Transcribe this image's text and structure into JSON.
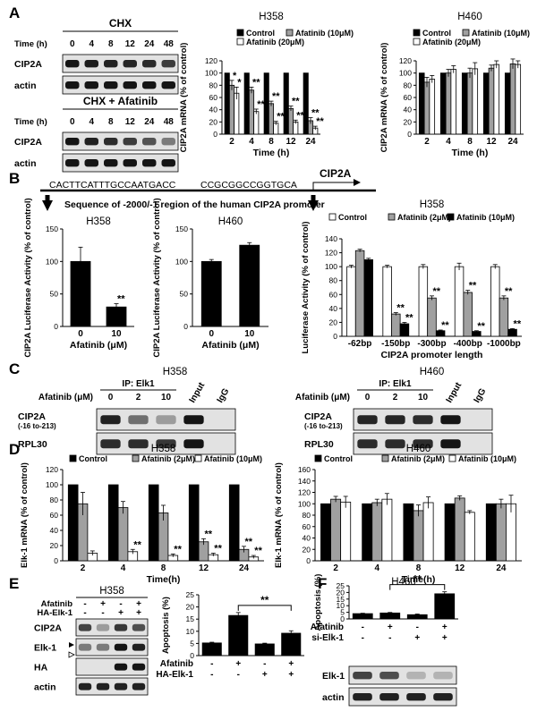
{
  "panels": {
    "A": {
      "label": "A",
      "blot_top": {
        "title": "CHX",
        "time_label": "Time (h)",
        "times": [
          "0",
          "4",
          "8",
          "12",
          "24",
          "48"
        ],
        "rows": [
          {
            "name": "CIP2A",
            "intensity": [
              0.95,
              0.92,
              0.9,
              0.88,
              0.86,
              0.78
            ]
          },
          {
            "name": "actin",
            "intensity": [
              0.95,
              0.95,
              0.95,
              0.95,
              0.95,
              0.95
            ]
          }
        ]
      },
      "blot_bottom": {
        "title": "CHX + Afatinib",
        "time_label": "Time (h)",
        "times": [
          "0",
          "4",
          "8",
          "12",
          "24",
          "48"
        ],
        "rows": [
          {
            "name": "CIP2A",
            "intensity": [
              0.95,
              0.9,
              0.85,
              0.78,
              0.68,
              0.5
            ]
          },
          {
            "name": "actin",
            "intensity": [
              0.95,
              0.95,
              0.95,
              0.95,
              0.95,
              0.95
            ]
          }
        ]
      }
    },
    "B": {
      "label": "B",
      "promoter": {
        "seq_left": "CACTTCATTTGCCAATGACC",
        "seq_right": "CCGCGGCCGGTGCA",
        "gene": "CIP2A",
        "caption": "Sequence of -2000/-1  region of  the human CIP2A promoter"
      }
    },
    "C": {
      "label": "C",
      "blots": [
        {
          "cell": "H358",
          "ip": "IP: Elk1",
          "dose_label": "Afatinib (μM)",
          "doses": [
            "0",
            "2",
            "10"
          ],
          "extra_lanes": [
            "Input",
            "IgG"
          ],
          "rows": [
            {
              "name": "CIP2A",
              "sub": "(-16 to-213)",
              "intensity": [
                0.9,
                0.55,
                0.35,
                0.95,
                0.0
              ]
            },
            {
              "name": "RPL30",
              "sub": "",
              "intensity": [
                0.85,
                0.85,
                0.8,
                0.95,
                0.0
              ]
            }
          ]
        },
        {
          "cell": "H460",
          "ip": "IP: Elk1",
          "dose_label": "Afatinib (μM)",
          "doses": [
            "0",
            "2",
            "10"
          ],
          "extra_lanes": [
            "Input",
            "IgG"
          ],
          "rows": [
            {
              "name": "CIP2A",
              "sub": "(-16 to-213)",
              "intensity": [
                0.88,
                0.88,
                0.85,
                0.95,
                0.0
              ]
            },
            {
              "name": "RPL30",
              "sub": "",
              "intensity": [
                0.85,
                0.85,
                0.85,
                0.95,
                0.0
              ]
            }
          ]
        }
      ]
    },
    "D": {
      "label": "D"
    },
    "E": {
      "label": "E",
      "blot": {
        "cell": "H358",
        "conditions": [
          {
            "name": "Afatinib",
            "signs": [
              "-",
              "+",
              "-",
              "+"
            ]
          },
          {
            "name": "HA-Elk-1",
            "signs": [
              "-",
              "-",
              "+",
              "+"
            ]
          }
        ],
        "rows": [
          {
            "name": "CIP2A",
            "intensity": [
              0.75,
              0.35,
              0.8,
              0.7
            ]
          },
          {
            "name": "Elk-1",
            "intensity": [
              0.5,
              0.5,
              0.95,
              0.9
            ]
          },
          {
            "name": "HA",
            "intensity": [
              0.0,
              0.0,
              0.95,
              0.95
            ]
          },
          {
            "name": "actin",
            "intensity": [
              0.9,
              0.9,
              0.9,
              0.9
            ]
          }
        ]
      }
    },
    "F": {
      "label": "F",
      "blot": {
        "conditions": [
          {
            "name": "Afatinib",
            "signs": [
              "-",
              "+",
              "-",
              "+"
            ]
          },
          {
            "name": "si-Elk-1",
            "signs": [
              "-",
              "-",
              "+",
              "+"
            ]
          }
        ],
        "rows": [
          {
            "name": "Elk-1",
            "intensity": [
              0.75,
              0.7,
              0.25,
              0.25
            ]
          },
          {
            "name": "actin",
            "intensity": [
              0.9,
              0.9,
              0.9,
              0.9
            ]
          }
        ]
      }
    }
  },
  "chart_data": [
    {
      "id": "A-H358",
      "type": "bar",
      "title": "H358",
      "xlabel": "Time (h)",
      "ylabel": "CIP2A mRNA (% of control)",
      "categories": [
        "2",
        "4",
        "8",
        "12",
        "24"
      ],
      "ylim": [
        0,
        120
      ],
      "yticks": [
        0,
        20,
        40,
        60,
        80,
        100,
        120
      ],
      "legend_cols": 2,
      "series": [
        {
          "name": "Control",
          "fill": "#000000",
          "values": [
            100,
            100,
            100,
            100,
            100
          ],
          "err": [
            0,
            0,
            0,
            0,
            0
          ],
          "stars": [
            "",
            "",
            "",
            "",
            ""
          ]
        },
        {
          "name": "Afatinib (10μM)",
          "fill": "#a0a0a0",
          "values": [
            80,
            72,
            50,
            42,
            22
          ],
          "err": [
            8,
            5,
            4,
            4,
            5
          ],
          "stars": [
            "*",
            "**",
            "**",
            "**",
            "**"
          ]
        },
        {
          "name": "Afatinib (20μM)",
          "fill": "#ffffff",
          "values": [
            67,
            37,
            18,
            20,
            10
          ],
          "err": [
            10,
            4,
            3,
            3,
            3
          ],
          "stars": [
            "*",
            "**",
            "**",
            "**",
            "**"
          ]
        }
      ]
    },
    {
      "id": "A-H460",
      "type": "bar",
      "title": "H460",
      "xlabel": "Time (h)",
      "ylabel": "CIP2A  mRNA (% of control)",
      "categories": [
        "2",
        "4",
        "8",
        "12",
        "24"
      ],
      "ylim": [
        0,
        120
      ],
      "yticks": [
        0,
        20,
        40,
        60,
        80,
        100,
        120
      ],
      "legend_cols": 2,
      "series": [
        {
          "name": "Control",
          "fill": "#000000",
          "values": [
            100,
            100,
            100,
            100,
            100
          ],
          "err": [
            0,
            0,
            0,
            0,
            0
          ],
          "stars": [
            "",
            "",
            "",
            "",
            ""
          ]
        },
        {
          "name": "Afatinib (10μM)",
          "fill": "#a0a0a0",
          "values": [
            85,
            100,
            100,
            108,
            115
          ],
          "err": [
            8,
            6,
            8,
            5,
            8
          ],
          "stars": [
            "",
            "",
            "",
            "",
            ""
          ]
        },
        {
          "name": "Afatinib (20μM)",
          "fill": "#ffffff",
          "values": [
            90,
            106,
            107,
            114,
            114
          ],
          "err": [
            6,
            6,
            10,
            6,
            6
          ],
          "stars": [
            "",
            "",
            "",
            "",
            ""
          ]
        }
      ]
    },
    {
      "id": "B-H358",
      "type": "bar",
      "title": "H358",
      "xlabel": "Afatinib  (μM)",
      "ylabel": "CIP2A Luciferase Activity (% of control)",
      "categories": [
        "0",
        "10"
      ],
      "ylim": [
        0,
        150
      ],
      "yticks": [
        0,
        50,
        100,
        150
      ],
      "series": [
        {
          "name": "",
          "fill": "#000000",
          "values": [
            100,
            30
          ],
          "err": [
            22,
            5
          ],
          "stars": [
            "",
            "**"
          ]
        }
      ]
    },
    {
      "id": "B-H460",
      "type": "bar",
      "title": "H460",
      "xlabel": "Afatinib  (μM)",
      "ylabel": "CIP2A Luciferase Activity (% of control)",
      "categories": [
        "0",
        "10"
      ],
      "ylim": [
        0,
        150
      ],
      "yticks": [
        0,
        50,
        100,
        150
      ],
      "series": [
        {
          "name": "",
          "fill": "#000000",
          "values": [
            100,
            125
          ],
          "err": [
            3,
            4
          ],
          "stars": [
            "",
            ""
          ]
        }
      ]
    },
    {
      "id": "B-promoter",
      "type": "bar",
      "title": "H358",
      "xlabel": "CIP2A promoter length",
      "ylabel": "Luciferase  Activity (% of control)",
      "categories": [
        "-62bp",
        "-150bp",
        "-300bp",
        "-400bp",
        "-1000bp"
      ],
      "ylim": [
        0,
        140
      ],
      "yticks": [
        0,
        20,
        40,
        60,
        80,
        100,
        120,
        140
      ],
      "legend_cols": 3,
      "series": [
        {
          "name": "Control",
          "fill": "#ffffff",
          "values": [
            100,
            100,
            100,
            100,
            100
          ],
          "err": [
            2,
            2,
            3,
            5,
            3
          ],
          "stars": [
            "",
            "",
            "",
            "",
            ""
          ]
        },
        {
          "name": "Afatinib (2μM)",
          "fill": "#a0a0a0",
          "values": [
            123,
            32,
            55,
            63,
            55
          ],
          "err": [
            2,
            2,
            3,
            3,
            3
          ],
          "stars": [
            "",
            "**",
            "**",
            "**",
            "**"
          ]
        },
        {
          "name": "Afatinib (10μM)",
          "fill": "#000000",
          "values": [
            110,
            18,
            8,
            7,
            10
          ],
          "err": [
            2,
            2,
            1,
            1,
            1
          ],
          "stars": [
            "",
            "**",
            "**",
            "**",
            "**"
          ]
        }
      ]
    },
    {
      "id": "D-H358",
      "type": "bar",
      "title": "H358",
      "xlabel": "Time(h)",
      "ylabel": "Elk-1 mRNA (% of control)",
      "categories": [
        "2",
        "4",
        "8",
        "12",
        "24"
      ],
      "ylim": [
        0,
        120
      ],
      "yticks": [
        0,
        20,
        40,
        60,
        80,
        100,
        120
      ],
      "legend_cols": 3,
      "series": [
        {
          "name": "Control",
          "fill": "#000000",
          "values": [
            100,
            100,
            100,
            100,
            100
          ],
          "err": [
            0,
            0,
            0,
            0,
            0
          ],
          "stars": [
            "",
            "",
            "",
            "",
            ""
          ]
        },
        {
          "name": "Afatinib (2μM)",
          "fill": "#a0a0a0",
          "values": [
            75,
            70,
            63,
            25,
            15
          ],
          "err": [
            15,
            8,
            10,
            4,
            4
          ],
          "stars": [
            "",
            "",
            "",
            "**",
            "**"
          ]
        },
        {
          "name": "Afatinib (10μM)",
          "fill": "#ffffff",
          "values": [
            10,
            12,
            7,
            8,
            5
          ],
          "err": [
            3,
            3,
            2,
            2,
            2
          ],
          "stars": [
            "",
            "**",
            "**",
            "**",
            "**"
          ]
        }
      ]
    },
    {
      "id": "D-H460",
      "type": "bar",
      "title": "H460",
      "xlabel": "Time(h)",
      "ylabel": "Elk-1 mRNA (% of control)",
      "categories": [
        "2",
        "4",
        "8",
        "12",
        "24"
      ],
      "ylim": [
        0,
        160
      ],
      "yticks": [
        0,
        20,
        40,
        60,
        80,
        100,
        120,
        140,
        160
      ],
      "legend_cols": 3,
      "series": [
        {
          "name": "Control",
          "fill": "#000000",
          "values": [
            100,
            100,
            100,
            100,
            100
          ],
          "err": [
            0,
            0,
            0,
            0,
            0
          ],
          "stars": [
            "",
            "",
            "",
            "",
            ""
          ]
        },
        {
          "name": "Afatinib (2μM)",
          "fill": "#a0a0a0",
          "values": [
            108,
            102,
            88,
            110,
            100
          ],
          "err": [
            5,
            6,
            10,
            4,
            8
          ],
          "stars": [
            "",
            "",
            "",
            "",
            ""
          ]
        },
        {
          "name": "Afatinib (10μM)",
          "fill": "#ffffff",
          "values": [
            103,
            108,
            102,
            85,
            100
          ],
          "err": [
            10,
            10,
            10,
            3,
            15
          ],
          "stars": [
            "",
            "",
            "",
            "",
            ""
          ]
        }
      ]
    },
    {
      "id": "E-apoptosis",
      "type": "bar",
      "title": "",
      "xlabel": "",
      "ylabel": "Apoptosis (%)",
      "categories": [
        "1",
        "2",
        "3",
        "4"
      ],
      "ylim": [
        0,
        25
      ],
      "yticks": [
        0,
        5,
        10,
        15,
        20,
        25
      ],
      "conditions": [
        {
          "name": "Afatinib",
          "signs": [
            "-",
            "+",
            "-",
            "+"
          ]
        },
        {
          "name": "HA-Elk-1",
          "signs": [
            "-",
            "-",
            "+",
            "+"
          ]
        }
      ],
      "bracket": {
        "from": 1,
        "to": 3,
        "label": "**"
      },
      "series": [
        {
          "name": "",
          "fill": "#000000",
          "values": [
            5.2,
            16.5,
            4.8,
            9.2
          ],
          "err": [
            0.3,
            1.2,
            0.3,
            1.0
          ],
          "stars": [
            "",
            "",
            "",
            ""
          ]
        }
      ]
    },
    {
      "id": "F-apoptosis",
      "type": "bar",
      "title": "H460",
      "xlabel": "",
      "ylabel": "Apoptosis (%)",
      "categories": [
        "1",
        "2",
        "3",
        "4"
      ],
      "ylim": [
        0,
        25
      ],
      "yticks": [
        0,
        5,
        10,
        15,
        20,
        25
      ],
      "conditions": [
        {
          "name": "Afatinib",
          "signs": [
            "-",
            "+",
            "-",
            "+"
          ]
        },
        {
          "name": "si-Elk-1",
          "signs": [
            "-",
            "-",
            "+",
            "+"
          ]
        }
      ],
      "bracket": {
        "from": 1,
        "to": 3,
        "label": "**"
      },
      "series": [
        {
          "name": "",
          "fill": "#000000",
          "values": [
            4,
            4.5,
            3.2,
            19
          ],
          "err": [
            0.3,
            0.4,
            0.5,
            1.5
          ],
          "stars": [
            "",
            "",
            "",
            ""
          ]
        }
      ]
    }
  ]
}
